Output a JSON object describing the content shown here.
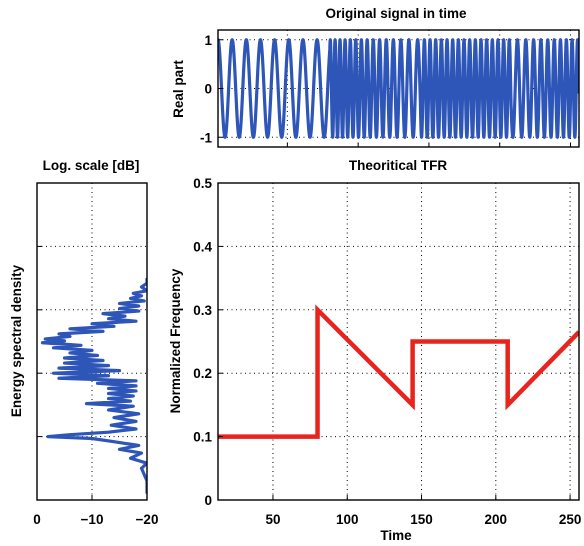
{
  "chart_data": [
    {
      "id": "signal",
      "type": "line",
      "title": "Original signal in time",
      "xlabel": "",
      "ylabel": "Real part",
      "xlim": [
        1,
        256
      ],
      "ylim": [
        -1.2,
        1.2
      ],
      "yticks": [
        -1,
        0,
        1
      ],
      "xticks": [
        0,
        50,
        100,
        150,
        200,
        250
      ],
      "show_xtick_labels": false,
      "grid": true,
      "color": "#2e55b8",
      "frequency_law": [
        {
          "t_start": 1,
          "t_end": 80,
          "f_start": 0.1,
          "f_end": 0.1
        },
        {
          "t_start": 80,
          "t_end": 144,
          "f_start": 0.3,
          "f_end": 0.15
        },
        {
          "t_start": 144,
          "t_end": 208,
          "f_start": 0.25,
          "f_end": 0.25
        },
        {
          "t_start": 208,
          "t_end": 256,
          "f_start": 0.15,
          "f_end": 0.265
        }
      ]
    },
    {
      "id": "spectrum",
      "type": "line",
      "title": "Log. scale [dB]",
      "xlabel": "",
      "ylabel": "Energy spectral density",
      "xlim": [
        0,
        -20
      ],
      "xticks": [
        0,
        -10,
        -20
      ],
      "xtick_labels": [
        "0",
        "−10",
        "−20"
      ],
      "ylim": [
        0,
        0.5
      ],
      "yticks": [
        0,
        0.1,
        0.2,
        0.3,
        0.4,
        0.5
      ],
      "grid": true,
      "color": "#2e55b8",
      "points": [
        [
          0.01,
          -20
        ],
        [
          0.02,
          -20
        ],
        [
          0.03,
          -20
        ],
        [
          0.04,
          -19.5
        ],
        [
          0.05,
          -19
        ],
        [
          0.058,
          -20
        ],
        [
          0.066,
          -17
        ],
        [
          0.074,
          -19
        ],
        [
          0.08,
          -15
        ],
        [
          0.086,
          -18.5
        ],
        [
          0.092,
          -14
        ],
        [
          0.097,
          -10
        ],
        [
          0.1,
          -2
        ],
        [
          0.103,
          -6
        ],
        [
          0.107,
          -13
        ],
        [
          0.112,
          -18
        ],
        [
          0.118,
          -13.5
        ],
        [
          0.124,
          -18
        ],
        [
          0.13,
          -14
        ],
        [
          0.136,
          -18.5
        ],
        [
          0.142,
          -13
        ],
        [
          0.148,
          -17.5
        ],
        [
          0.152,
          -9
        ],
        [
          0.156,
          -17
        ],
        [
          0.16,
          -13
        ],
        [
          0.164,
          -17.5
        ],
        [
          0.168,
          -13
        ],
        [
          0.172,
          -18
        ],
        [
          0.176,
          -13
        ],
        [
          0.18,
          -18
        ],
        [
          0.184,
          -11
        ],
        [
          0.188,
          -18
        ],
        [
          0.192,
          -4
        ],
        [
          0.196,
          -13
        ],
        [
          0.2,
          -3
        ],
        [
          0.204,
          -15
        ],
        [
          0.208,
          -4
        ],
        [
          0.212,
          -13
        ],
        [
          0.216,
          -5
        ],
        [
          0.22,
          -12
        ],
        [
          0.224,
          -5
        ],
        [
          0.228,
          -11
        ],
        [
          0.232,
          -6
        ],
        [
          0.236,
          -10
        ],
        [
          0.24,
          -3
        ],
        [
          0.244,
          -8
        ],
        [
          0.248,
          -1
        ],
        [
          0.251,
          -5
        ],
        [
          0.254,
          -1.5
        ],
        [
          0.258,
          -6
        ],
        [
          0.262,
          -4
        ],
        [
          0.266,
          -12
        ],
        [
          0.27,
          -6
        ],
        [
          0.274,
          -14
        ],
        [
          0.278,
          -10
        ],
        [
          0.282,
          -18
        ],
        [
          0.286,
          -13
        ],
        [
          0.29,
          -16
        ],
        [
          0.294,
          -12
        ],
        [
          0.298,
          -18.5
        ],
        [
          0.302,
          -15
        ],
        [
          0.306,
          -18.5
        ],
        [
          0.31,
          -15
        ],
        [
          0.314,
          -19.5
        ],
        [
          0.318,
          -17
        ],
        [
          0.322,
          -19
        ],
        [
          0.326,
          -17.5
        ],
        [
          0.33,
          -20
        ],
        [
          0.336,
          -19
        ],
        [
          0.342,
          -20
        ],
        [
          0.35,
          -20
        ]
      ]
    },
    {
      "id": "tfr",
      "type": "line",
      "title": "Theoritical TFR",
      "xlabel": "Time",
      "ylabel": "Normalized Frequency",
      "xlim": [
        13,
        256
      ],
      "ylim": [
        0,
        0.5
      ],
      "xticks": [
        50,
        100,
        150,
        200,
        250
      ],
      "yticks": [
        0,
        0.1,
        0.2,
        0.3,
        0.4,
        0.5
      ],
      "ytick_labels": [
        "0",
        "0.1",
        "0.2",
        "0.3",
        "0.4",
        "0.5"
      ],
      "grid": true,
      "color": "#e8241c",
      "points": [
        [
          13,
          0.1
        ],
        [
          80,
          0.1
        ],
        [
          80,
          0.3
        ],
        [
          144,
          0.15
        ],
        [
          144,
          0.25
        ],
        [
          208,
          0.25
        ],
        [
          208,
          0.15
        ],
        [
          256,
          0.265
        ]
      ]
    }
  ]
}
